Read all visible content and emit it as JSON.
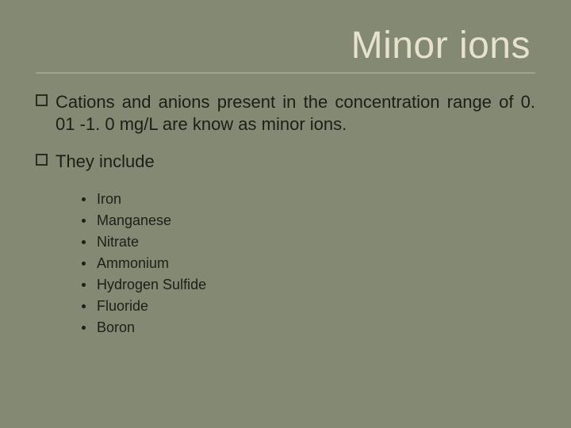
{
  "colors": {
    "background": "#848974",
    "title_light": "#e6e2cc",
    "title_shadow": "#5e624f",
    "hr": "#9ea38d",
    "body_text": "#1d1f17"
  },
  "typography": {
    "title_fontsize": 48,
    "para_fontsize": 22,
    "list_fontsize": 18
  },
  "title": "Minor ions",
  "paragraphs": [
    {
      "text": "Cations and anions present in the concentration range of 0. 01 -1. 0 mg/L are know as minor ions."
    },
    {
      "text": "They include"
    }
  ],
  "list_items": [
    "Iron",
    "Manganese",
    "Nitrate",
    "Ammonium",
    "Hydrogen Sulfide",
    "Fluoride",
    "Boron"
  ]
}
